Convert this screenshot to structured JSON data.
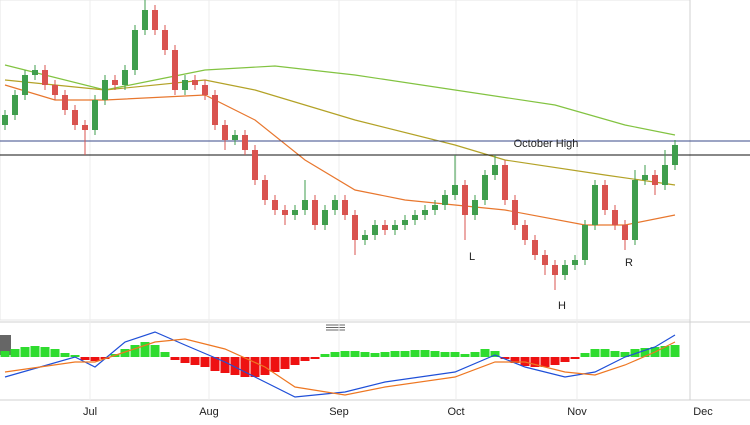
{
  "chart_data": [
    {
      "type": "candlestick",
      "xlim": [
        -0.5,
        68.5
      ],
      "ylim": [
        0,
        320
      ],
      "xticks": [
        {
          "value": 8.5,
          "label": "Jul"
        },
        {
          "value": 20.4,
          "label": "Aug"
        },
        {
          "value": 33.4,
          "label": "Sep"
        },
        {
          "value": 45.1,
          "label": "Oct"
        },
        {
          "value": 57.2,
          "label": "Nov"
        },
        {
          "value": 69.8,
          "label": "Dec"
        }
      ],
      "open": [
        195,
        205,
        225,
        245,
        250,
        235,
        225,
        210,
        195,
        190,
        220,
        240,
        235,
        250,
        290,
        310,
        290,
        270,
        230,
        240,
        235,
        225,
        195,
        180,
        185,
        170,
        140,
        120,
        110,
        105,
        110,
        120,
        95,
        110,
        120,
        105,
        80,
        85,
        95,
        90,
        95,
        100,
        105,
        110,
        115,
        125,
        135,
        105,
        120,
        145,
        155,
        120,
        95,
        80,
        65,
        55,
        45,
        55,
        60,
        95,
        135,
        110,
        95,
        80,
        140,
        145,
        135,
        155
      ],
      "high": [
        210,
        230,
        250,
        255,
        255,
        240,
        230,
        215,
        200,
        225,
        245,
        245,
        255,
        295,
        320,
        315,
        295,
        275,
        245,
        245,
        240,
        230,
        200,
        190,
        190,
        175,
        145,
        125,
        115,
        115,
        140,
        125,
        115,
        125,
        125,
        110,
        90,
        100,
        100,
        100,
        105,
        110,
        115,
        120,
        130,
        165,
        140,
        125,
        150,
        165,
        160,
        125,
        100,
        85,
        70,
        60,
        60,
        65,
        100,
        140,
        140,
        115,
        100,
        150,
        155,
        150,
        170,
        180
      ],
      "low": [
        190,
        200,
        220,
        240,
        230,
        220,
        205,
        190,
        165,
        185,
        215,
        230,
        230,
        245,
        285,
        285,
        265,
        225,
        225,
        230,
        220,
        190,
        170,
        175,
        165,
        135,
        115,
        105,
        95,
        100,
        105,
        90,
        90,
        105,
        100,
        65,
        75,
        80,
        85,
        85,
        90,
        95,
        100,
        105,
        110,
        120,
        80,
        100,
        115,
        140,
        115,
        90,
        75,
        60,
        45,
        30,
        40,
        50,
        55,
        90,
        105,
        90,
        70,
        75,
        135,
        125,
        130,
        150
      ],
      "close": [
        205,
        225,
        245,
        250,
        235,
        225,
        210,
        195,
        190,
        220,
        240,
        235,
        250,
        290,
        310,
        290,
        270,
        230,
        240,
        235,
        225,
        195,
        180,
        185,
        170,
        140,
        120,
        110,
        105,
        110,
        120,
        95,
        110,
        120,
        105,
        80,
        85,
        95,
        90,
        95,
        100,
        105,
        110,
        115,
        125,
        135,
        105,
        120,
        145,
        155,
        120,
        95,
        80,
        65,
        55,
        45,
        55,
        60,
        95,
        135,
        110,
        95,
        80,
        140,
        145,
        135,
        155,
        175
      ],
      "colors": {
        "up": "#3f9e4d",
        "down": "#d9534f"
      },
      "lines": [
        {
          "color": "#82c341",
          "x": [
            0,
            10,
            15,
            20,
            27,
            35,
            45,
            55,
            62,
            67
          ],
          "values": [
            255,
            230,
            240,
            250,
            254,
            245,
            230,
            215,
            195,
            185
          ]
        },
        {
          "color": "#b3a227",
          "x": [
            0,
            10,
            20,
            25,
            35,
            45,
            50,
            60,
            67
          ],
          "values": [
            240,
            230,
            240,
            230,
            200,
            175,
            160,
            145,
            135
          ]
        },
        {
          "color": "#e8772e",
          "x": [
            0,
            5,
            10,
            20,
            25,
            30,
            35,
            40,
            50,
            58,
            62,
            67
          ],
          "values": [
            235,
            220,
            220,
            225,
            200,
            160,
            130,
            120,
            110,
            95,
            95,
            105
          ]
        }
      ],
      "levels": [
        179,
        165
      ],
      "annotations": [
        {
          "text": "October High"
        },
        {
          "text": "L"
        },
        {
          "text": "H"
        },
        {
          "text": "R"
        }
      ]
    },
    {
      "type": "macd",
      "xlim": [
        -0.5,
        68.5
      ],
      "ylim": [
        -43,
        24
      ],
      "histogram": [
        6,
        8,
        10,
        11,
        10,
        8,
        4,
        2,
        -3,
        -4,
        -2,
        3,
        8,
        12,
        15,
        12,
        5,
        -3,
        -6,
        -8,
        -10,
        -14,
        -16,
        -18,
        -20,
        -20,
        -18,
        -15,
        -12,
        -8,
        -4,
        -2,
        3,
        5,
        6,
        6,
        5,
        4,
        5,
        6,
        6,
        7,
        7,
        6,
        5,
        5,
        3,
        5,
        8,
        6,
        -2,
        -6,
        -9,
        -10,
        -10,
        -8,
        -5,
        -2,
        4,
        8,
        8,
        6,
        5,
        8,
        9,
        10,
        11,
        12
      ],
      "colors": {
        "up": "#2fdc2f",
        "down": "#ee1111"
      },
      "lines": [
        {
          "color": "#1f4fd8",
          "x": [
            0,
            7,
            9,
            12,
            15,
            18,
            22,
            26,
            29,
            34,
            38,
            45,
            49,
            52,
            56,
            59,
            62,
            65,
            67
          ],
          "values": [
            -20,
            0,
            -10,
            15,
            25,
            12,
            -5,
            -25,
            -40,
            -35,
            -25,
            -15,
            2,
            -10,
            -20,
            -15,
            0,
            10,
            22
          ]
        },
        {
          "color": "#ee7722",
          "x": [
            0,
            7,
            9,
            12,
            15,
            18,
            22,
            26,
            29,
            34,
            38,
            45,
            49,
            52,
            56,
            59,
            62,
            65,
            67
          ],
          "values": [
            -15,
            -5,
            -5,
            5,
            15,
            18,
            8,
            -10,
            -30,
            -38,
            -30,
            -20,
            -5,
            -5,
            -15,
            -18,
            -8,
            5,
            15
          ]
        }
      ]
    }
  ]
}
